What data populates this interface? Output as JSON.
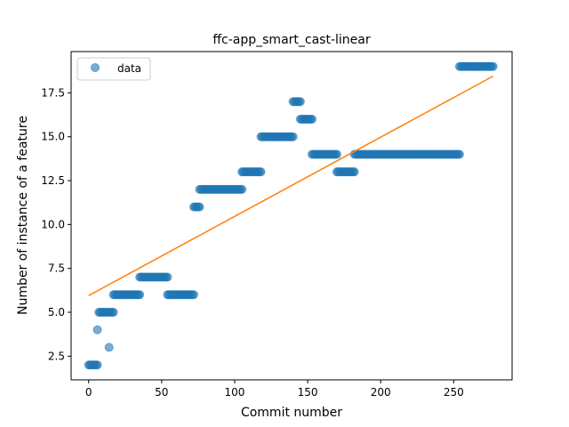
{
  "chart_data": {
    "type": "scatter",
    "title": "ffc-app_smart_cast-linear",
    "xlabel": "Commit number",
    "ylabel": "Number of instance of a feature",
    "xlim": [
      -12,
      290
    ],
    "ylim": [
      1.15,
      19.85
    ],
    "xticks": [
      0,
      50,
      100,
      150,
      200,
      250
    ],
    "xtick_labels": [
      "0",
      "50",
      "100",
      "150",
      "200",
      "250"
    ],
    "yticks": [
      2.5,
      5.0,
      7.5,
      10.0,
      12.5,
      15.0,
      17.5
    ],
    "ytick_labels": [
      "2.5",
      "5.0",
      "7.5",
      "10.0",
      "12.5",
      "15.0",
      "17.5"
    ],
    "grid": false,
    "legend": {
      "placement": "top-left",
      "entries": [
        "data"
      ]
    },
    "colors": {
      "data": "#1f77b4",
      "fit": "#ff7f0e"
    },
    "series": [
      {
        "name": "data",
        "kind": "scatter",
        "runs": [
          {
            "x_start": 0,
            "x_end": 6,
            "y": 2
          },
          {
            "x_start": 6,
            "x_end": 6,
            "y": 4
          },
          {
            "x_start": 7,
            "x_end": 17,
            "y": 5
          },
          {
            "x_start": 14,
            "x_end": 14,
            "y": 3
          },
          {
            "x_start": 17,
            "x_end": 35,
            "y": 6
          },
          {
            "x_start": 35,
            "x_end": 54,
            "y": 7
          },
          {
            "x_start": 54,
            "x_end": 72,
            "y": 6
          },
          {
            "x_start": 72,
            "x_end": 76,
            "y": 11
          },
          {
            "x_start": 76,
            "x_end": 105,
            "y": 12
          },
          {
            "x_start": 105,
            "x_end": 118,
            "y": 13
          },
          {
            "x_start": 118,
            "x_end": 140,
            "y": 15
          },
          {
            "x_start": 140,
            "x_end": 145,
            "y": 17
          },
          {
            "x_start": 145,
            "x_end": 153,
            "y": 16
          },
          {
            "x_start": 153,
            "x_end": 170,
            "y": 14
          },
          {
            "x_start": 170,
            "x_end": 182,
            "y": 13
          },
          {
            "x_start": 182,
            "x_end": 254,
            "y": 14
          },
          {
            "x_start": 254,
            "x_end": 277,
            "y": 19
          }
        ]
      },
      {
        "name": "fit",
        "kind": "line",
        "x": [
          0,
          277
        ],
        "y": [
          5.95,
          18.45
        ]
      }
    ]
  }
}
